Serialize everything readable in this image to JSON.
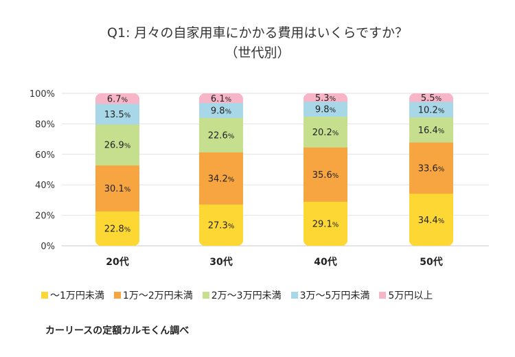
{
  "title": {
    "line1": "Q1: 月々の自家用車にかかる費用はいくらですか？",
    "line2": "（世代別）"
  },
  "source": "カーリースの定額カルモくん調べ",
  "chart_data": {
    "type": "bar",
    "stacked": true,
    "percent_stacked": true,
    "categories": [
      "20代",
      "30代",
      "40代",
      "50代"
    ],
    "series": [
      {
        "name": "〜1万円未満",
        "color": "#fdd835",
        "values": [
          22.8,
          27.3,
          29.1,
          34.4
        ]
      },
      {
        "name": "1万〜2万円未満",
        "color": "#f7a541",
        "values": [
          30.1,
          34.2,
          35.6,
          33.6
        ]
      },
      {
        "name": "2万〜3万円未満",
        "color": "#c5df8f",
        "values": [
          26.9,
          22.6,
          20.2,
          16.4
        ]
      },
      {
        "name": "3万〜5万円未満",
        "color": "#a8d8e8",
        "values": [
          13.5,
          9.8,
          9.8,
          10.2
        ]
      },
      {
        "name": "5万円以上",
        "color": "#f7b5c8",
        "values": [
          6.7,
          6.1,
          5.3,
          5.5
        ]
      }
    ],
    "y_ticks": [
      "0%",
      "20%",
      "40%",
      "60%",
      "80%",
      "100%"
    ],
    "ylim": [
      0,
      100
    ],
    "label_suffix": "%",
    "legend_position": "bottom",
    "grid": true
  }
}
